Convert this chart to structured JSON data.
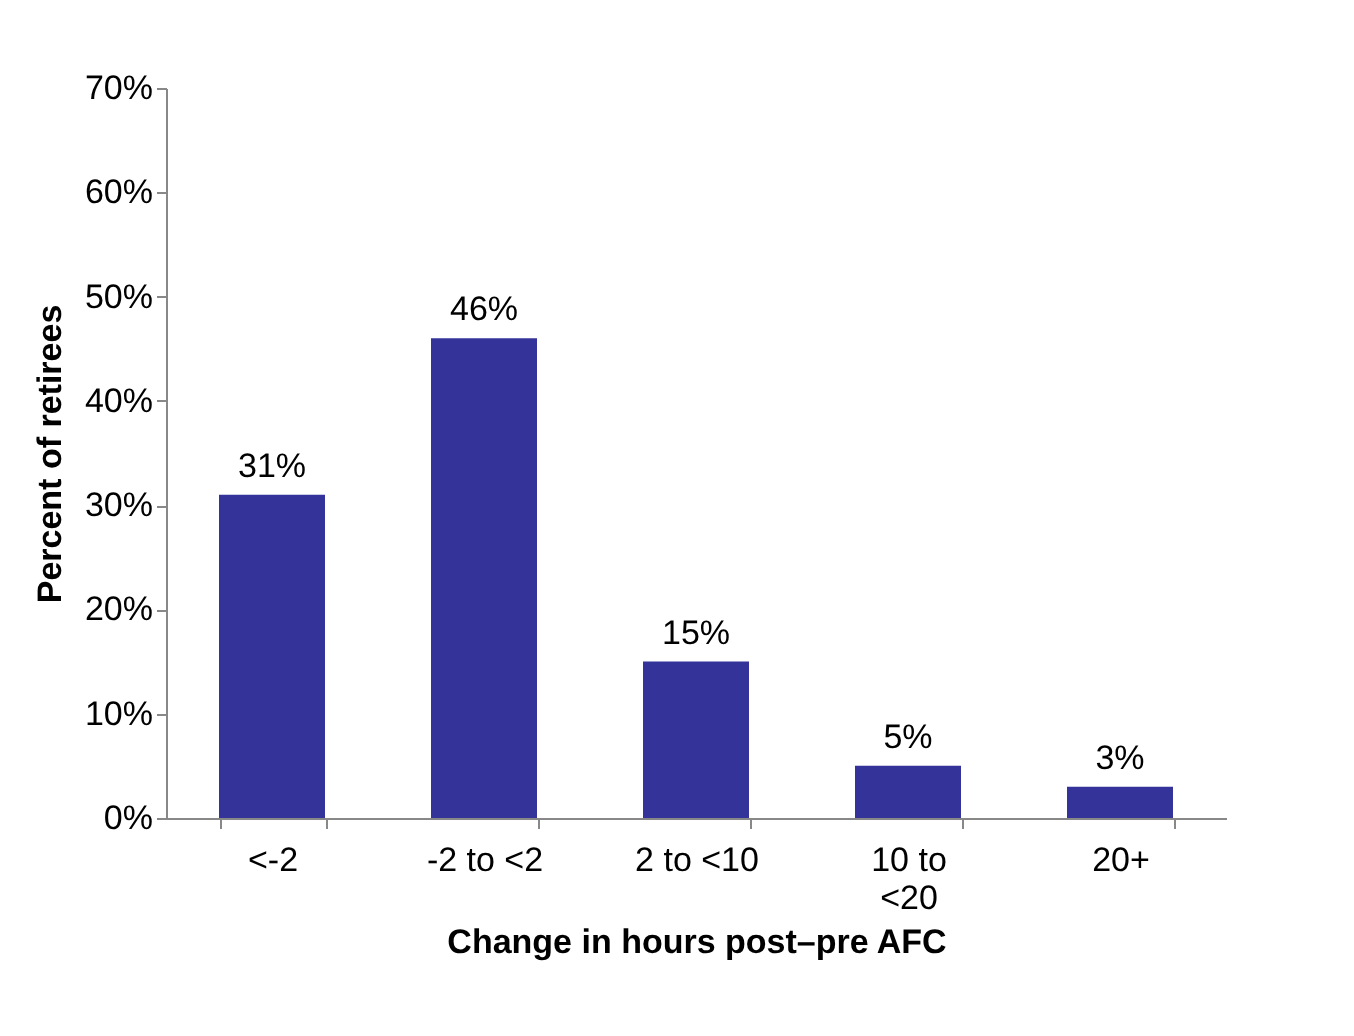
{
  "chart_data": {
    "type": "bar",
    "xlabel": "Change in hours post–pre AFC",
    "ylabel": "Percent of retirees",
    "categories": [
      "<-2",
      "-2 to <2",
      "2 to <10",
      "10 to <20",
      "20+"
    ],
    "values": [
      31,
      46,
      15,
      5,
      3
    ],
    "value_labels": [
      "31%",
      "46%",
      "15%",
      "5%",
      "3%"
    ],
    "color": "#333399",
    "ylim": [
      0,
      70
    ],
    "yticks": [
      {
        "value": 0,
        "label": "0%"
      },
      {
        "value": 10,
        "label": "10%"
      },
      {
        "value": 20,
        "label": "20%"
      },
      {
        "value": 30,
        "label": "30%"
      },
      {
        "value": 40,
        "label": "40%"
      },
      {
        "value": 50,
        "label": "50%"
      },
      {
        "value": 60,
        "label": "60%"
      },
      {
        "value": 70,
        "label": "70%"
      }
    ],
    "grid": false
  }
}
